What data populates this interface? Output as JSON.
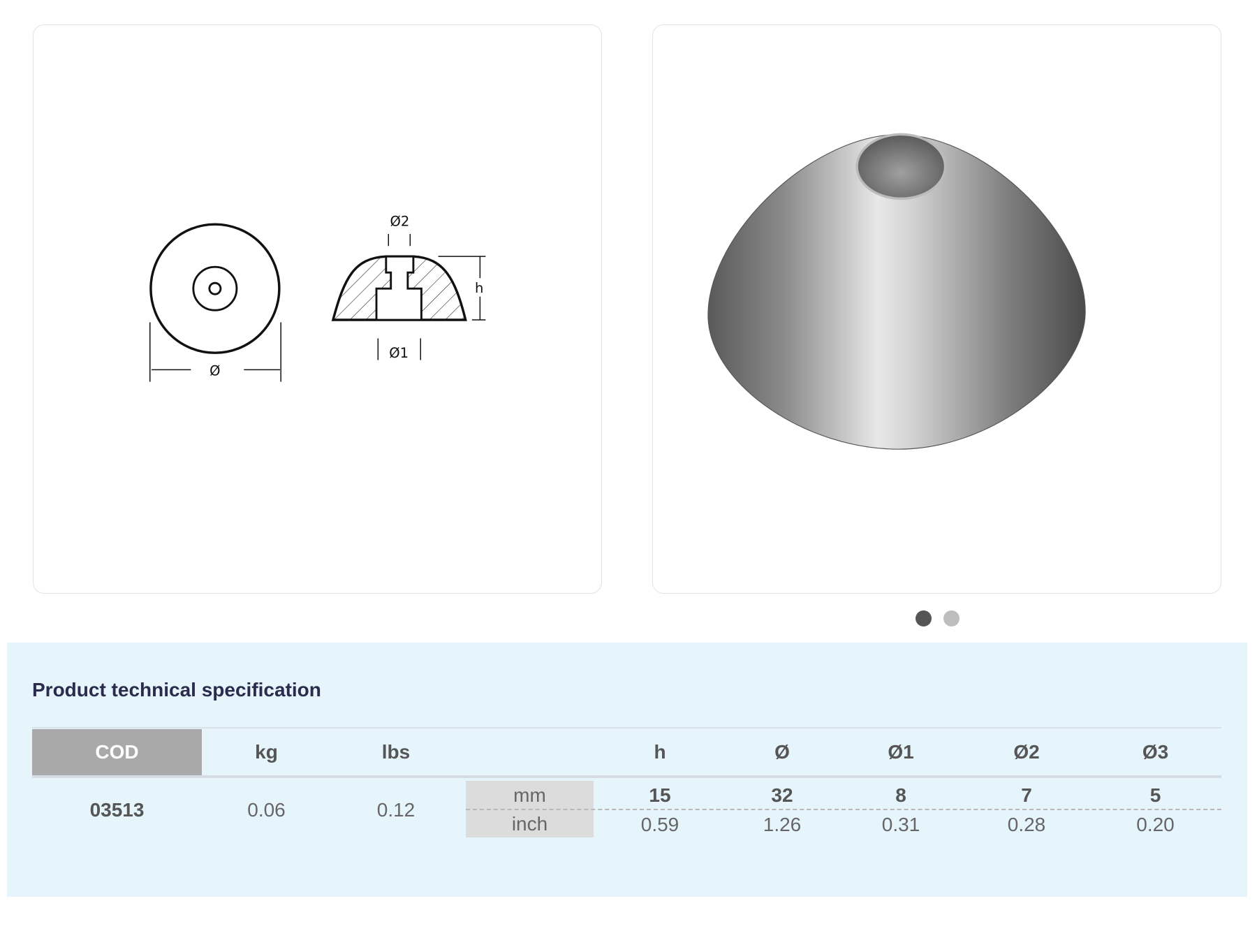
{
  "gallery": {
    "drawing_labels": {
      "diameter": "Ø",
      "diameter1": "Ø1",
      "diameter2": "Ø2",
      "height": "h"
    },
    "photo_alt": "zinc cone anode",
    "dots": [
      {
        "active": true
      },
      {
        "active": false
      }
    ],
    "colors": {
      "dot_active": "#555555",
      "dot_inactive": "#bdbdbd"
    }
  },
  "spec": {
    "title": "Product technical specification",
    "headers": {
      "cod": "COD",
      "kg": "kg",
      "lbs": "lbs",
      "h": "h",
      "d": "Ø",
      "d1": "Ø1",
      "d2": "Ø2",
      "d3": "Ø3"
    },
    "row": {
      "cod": "03513",
      "kg": "0.06",
      "lbs": "0.12",
      "units": {
        "mm": "mm",
        "inch": "inch"
      },
      "mm": {
        "h": "15",
        "d": "32",
        "d1": "8",
        "d2": "7",
        "d3": "5"
      },
      "inch": {
        "h": "0.59",
        "d": "1.26",
        "d1": "0.31",
        "d2": "0.28",
        "d3": "0.20"
      }
    },
    "colors": {
      "background": "#e6f4fc",
      "cod_header": "#a9a9a9",
      "title": "#2b2b4d"
    }
  }
}
